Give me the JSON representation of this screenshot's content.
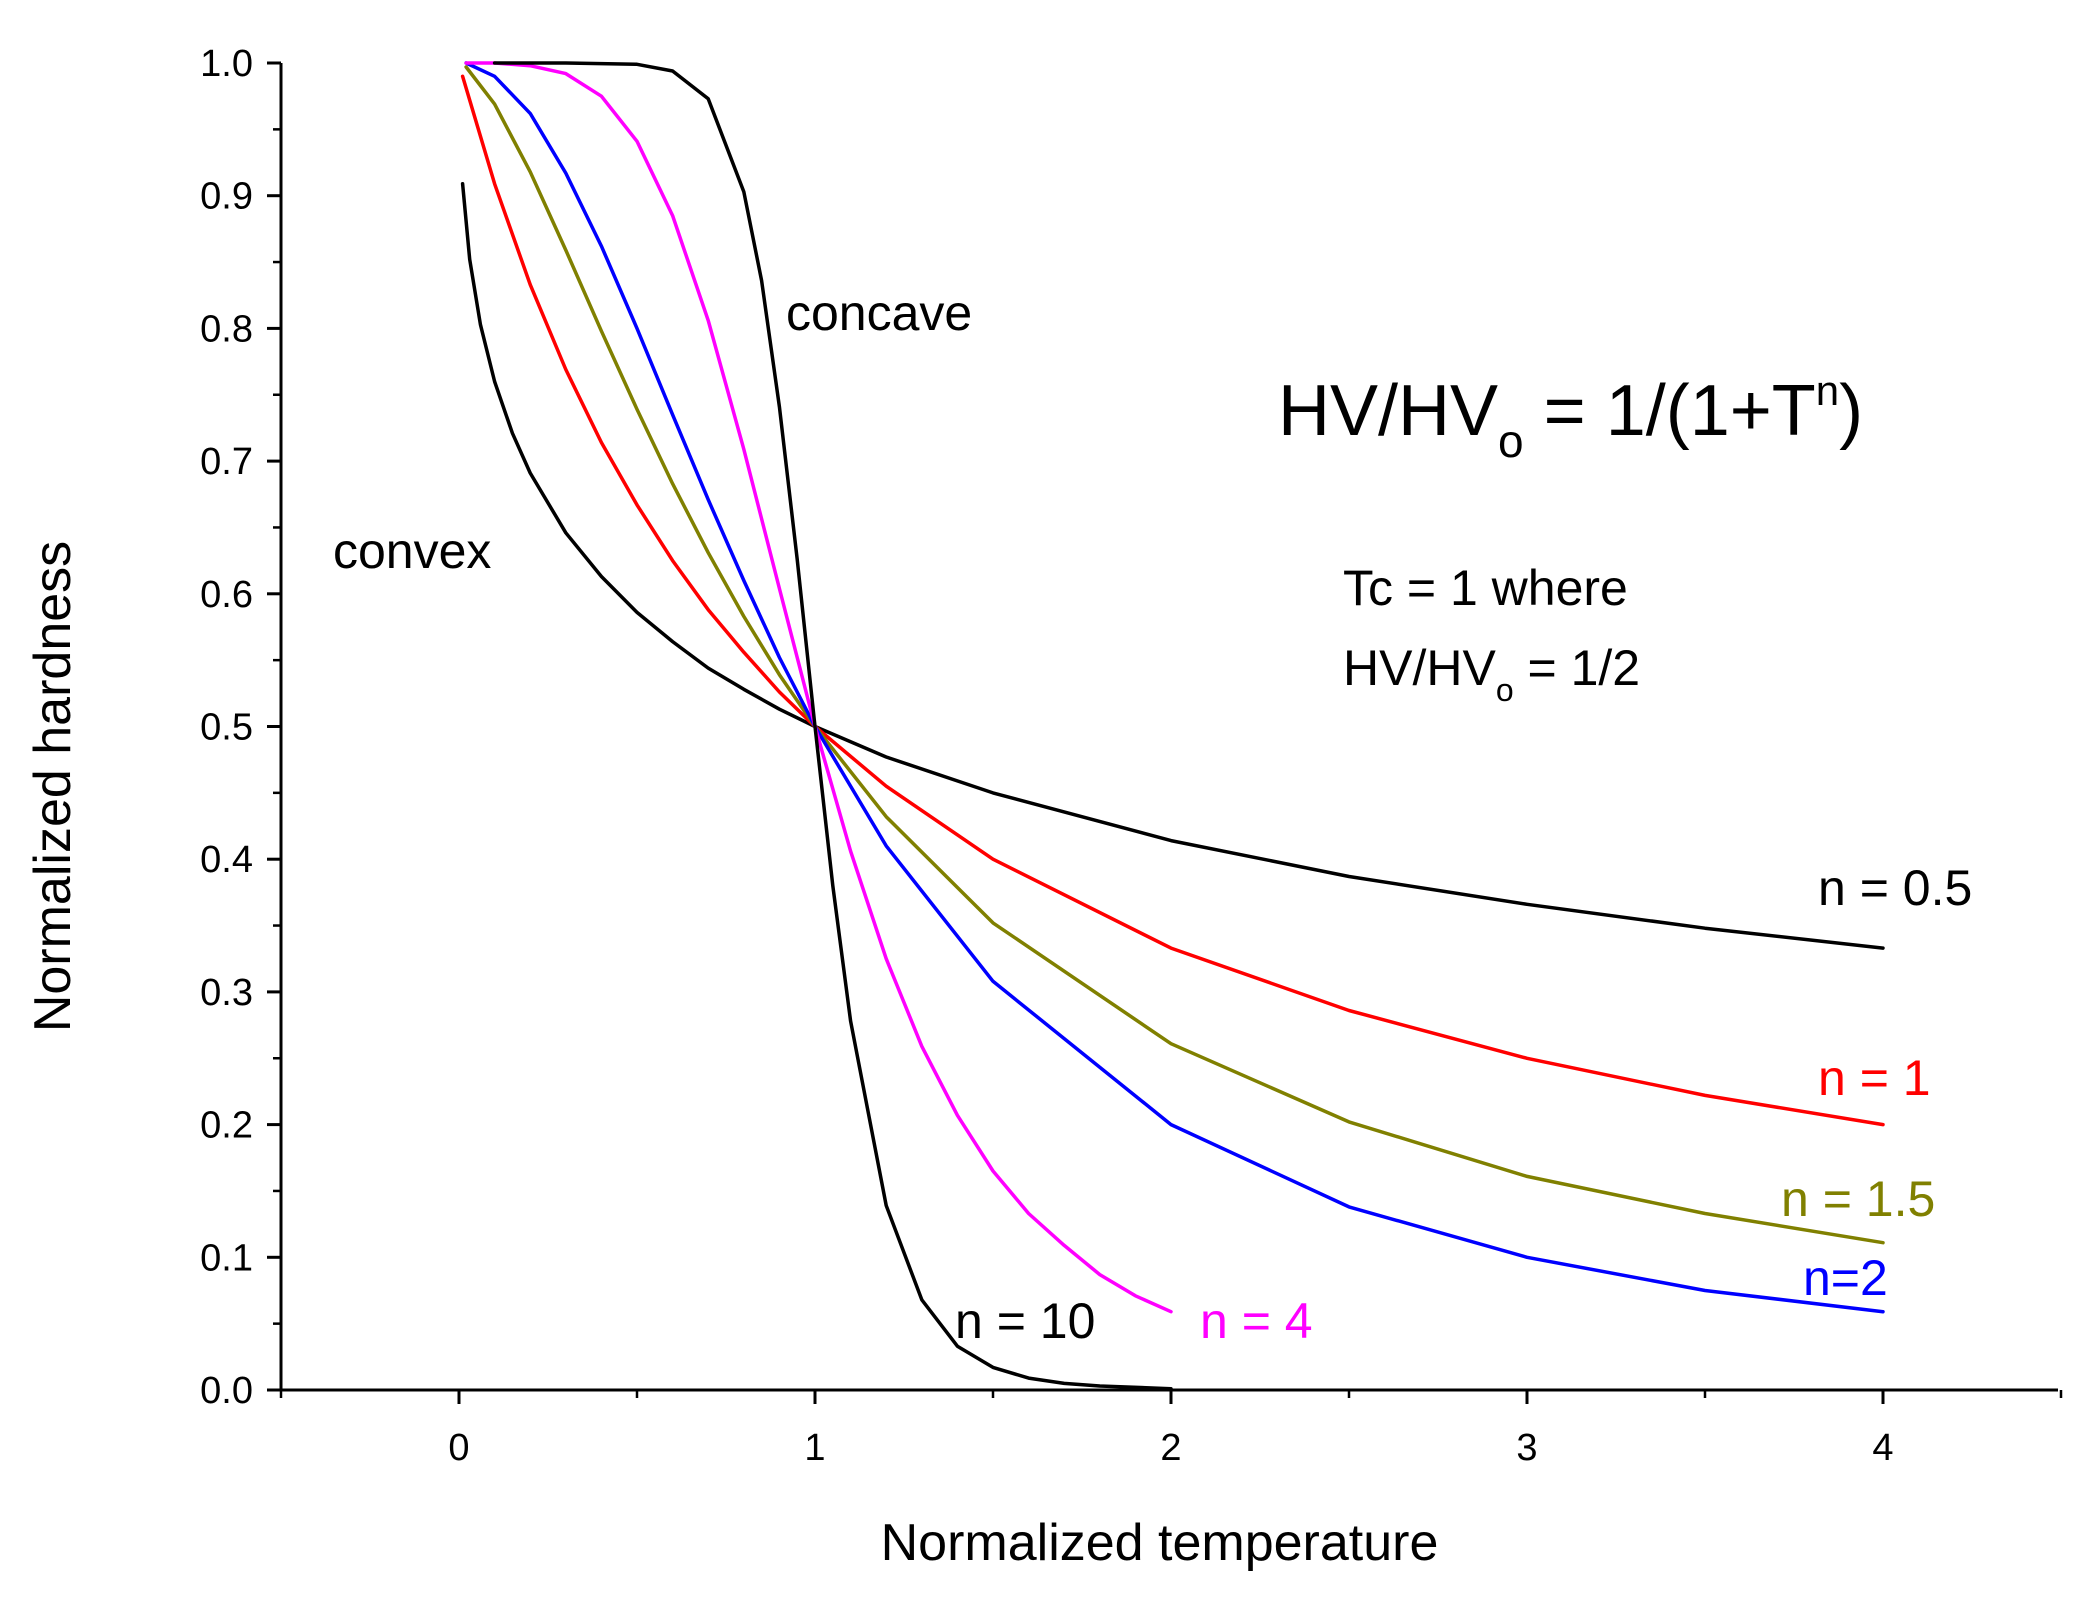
{
  "chart_data": {
    "type": "line",
    "title": "",
    "xlabel": "Normalized temperature",
    "ylabel": "Normalized hardness",
    "xlim": [
      -0.5,
      4.5
    ],
    "ylim": [
      0.0,
      1.0
    ],
    "xticks": [
      "0",
      "1",
      "2",
      "3",
      "4"
    ],
    "yticks": [
      "0.0",
      "0.1",
      "0.2",
      "0.3",
      "0.4",
      "0.5",
      "0.6",
      "0.7",
      "0.8",
      "0.9",
      "1.0"
    ],
    "grid": false,
    "series": [
      {
        "name": "n = 0.5",
        "label": "n = 0.5",
        "color": "#000000",
        "x": [
          0.01,
          0.03,
          0.06,
          0.1,
          0.15,
          0.2,
          0.3,
          0.4,
          0.5,
          0.6,
          0.7,
          0.8,
          0.9,
          1.0,
          1.2,
          1.5,
          2.0,
          2.5,
          3.0,
          3.5,
          4.0
        ],
        "y": [
          0.909,
          0.852,
          0.803,
          0.76,
          0.721,
          0.691,
          0.646,
          0.613,
          0.586,
          0.564,
          0.544,
          0.528,
          0.513,
          0.5,
          0.477,
          0.45,
          0.414,
          0.387,
          0.366,
          0.348,
          0.333
        ]
      },
      {
        "name": "n = 1",
        "label": "n = 1",
        "color": "#ff0000",
        "x": [
          0.01,
          0.1,
          0.2,
          0.3,
          0.4,
          0.5,
          0.6,
          0.7,
          0.8,
          0.9,
          1.0,
          1.2,
          1.5,
          2.0,
          2.5,
          3.0,
          3.5,
          4.0
        ],
        "y": [
          0.99,
          0.909,
          0.833,
          0.769,
          0.714,
          0.667,
          0.625,
          0.588,
          0.556,
          0.526,
          0.5,
          0.455,
          0.4,
          0.333,
          0.286,
          0.25,
          0.222,
          0.2
        ]
      },
      {
        "name": "n = 1.5",
        "label": "n = 1.5",
        "color": "#808000",
        "x": [
          0.02,
          0.1,
          0.2,
          0.3,
          0.4,
          0.5,
          0.6,
          0.7,
          0.8,
          0.9,
          1.0,
          1.2,
          1.5,
          2.0,
          2.5,
          3.0,
          3.5,
          4.0
        ],
        "y": [
          0.997,
          0.969,
          0.918,
          0.859,
          0.798,
          0.739,
          0.683,
          0.631,
          0.583,
          0.539,
          0.5,
          0.432,
          0.352,
          0.261,
          0.202,
          0.161,
          0.133,
          0.111
        ]
      },
      {
        "name": "n=2",
        "label": "n=2",
        "color": "#0000ff",
        "x": [
          0.02,
          0.1,
          0.2,
          0.3,
          0.4,
          0.5,
          0.6,
          0.7,
          0.8,
          0.9,
          1.0,
          1.2,
          1.5,
          2.0,
          2.5,
          3.0,
          3.5,
          4.0
        ],
        "y": [
          1.0,
          0.99,
          0.962,
          0.917,
          0.862,
          0.8,
          0.735,
          0.671,
          0.61,
          0.552,
          0.5,
          0.41,
          0.308,
          0.2,
          0.138,
          0.1,
          0.075,
          0.059
        ]
      },
      {
        "name": "n = 4",
        "label": "n = 4",
        "color": "#ff00ff",
        "x": [
          0.02,
          0.1,
          0.2,
          0.3,
          0.4,
          0.5,
          0.6,
          0.7,
          0.8,
          0.9,
          1.0,
          1.1,
          1.2,
          1.3,
          1.4,
          1.5,
          1.6,
          1.7,
          1.8,
          1.9,
          2.0
        ],
        "y": [
          1.0,
          1.0,
          0.998,
          0.992,
          0.975,
          0.941,
          0.885,
          0.806,
          0.709,
          0.604,
          0.5,
          0.406,
          0.325,
          0.259,
          0.207,
          0.165,
          0.133,
          0.109,
          0.087,
          0.071,
          0.059
        ]
      },
      {
        "name": "n = 10",
        "label": "n = 10",
        "color": "#000000",
        "x": [
          0.1,
          0.3,
          0.5,
          0.6,
          0.7,
          0.8,
          0.85,
          0.9,
          0.95,
          1.0,
          1.05,
          1.1,
          1.2,
          1.3,
          1.4,
          1.5,
          1.6,
          1.7,
          1.8,
          2.0
        ],
        "y": [
          1.0,
          1.0,
          0.999,
          0.994,
          0.973,
          0.903,
          0.836,
          0.741,
          0.626,
          0.5,
          0.38,
          0.278,
          0.139,
          0.068,
          0.033,
          0.017,
          0.009,
          0.005,
          0.003,
          0.001
        ]
      }
    ],
    "annotations": {
      "concave": "concave",
      "convex": "convex",
      "formula_main": "HV/HV",
      "formula_sub": "o",
      "formula_rest": " = 1/(1+T",
      "formula_sup": "n",
      "formula_end": ")",
      "tc_line1": "Tc = 1 where",
      "tc_line2_main": "HV/HV",
      "tc_line2_sub": "o",
      "tc_line2_end": " = 1/2"
    }
  }
}
